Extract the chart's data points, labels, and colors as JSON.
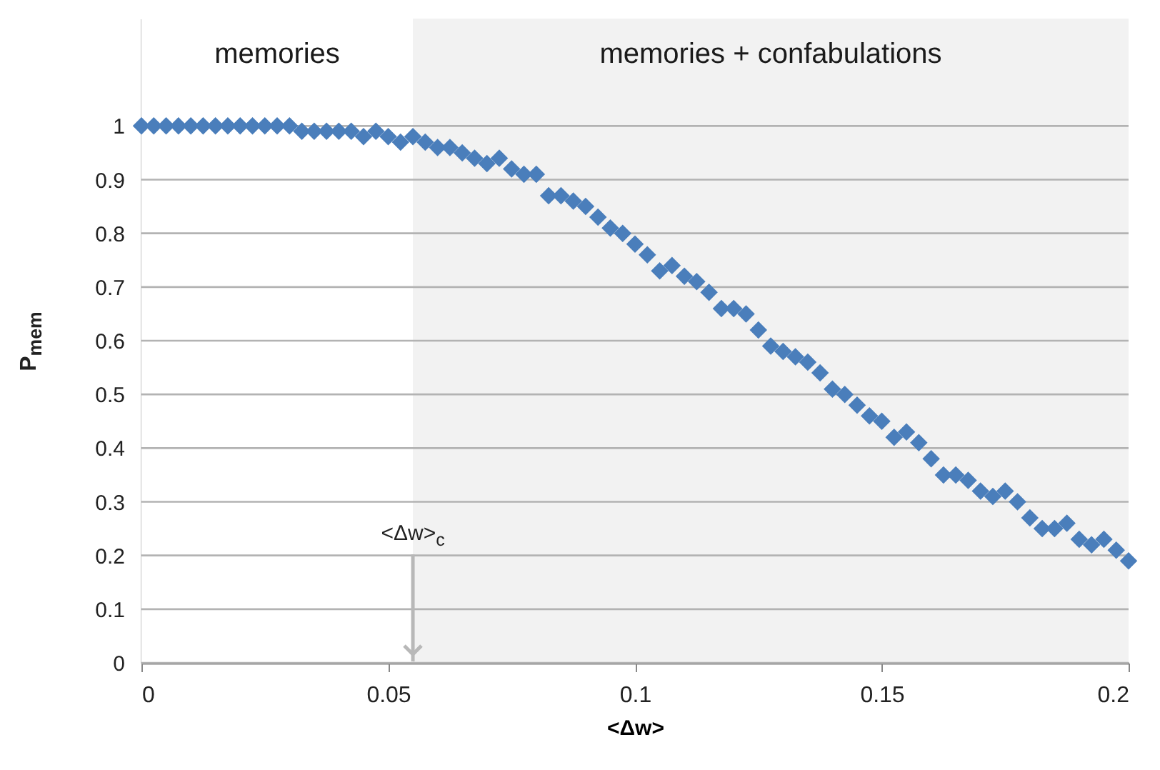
{
  "chart_data": {
    "type": "scatter",
    "xlabel": "<Δw>",
    "ylabel": "P$_{mem}$",
    "x": [
      0,
      0.0025,
      0.005,
      0.0075,
      0.01,
      0.0125,
      0.015,
      0.0175,
      0.02,
      0.0225,
      0.025,
      0.0275,
      0.03,
      0.0325,
      0.035,
      0.0375,
      0.04,
      0.0425,
      0.045,
      0.0475,
      0.05,
      0.0525,
      0.055,
      0.0575,
      0.06,
      0.0625,
      0.065,
      0.0675,
      0.07,
      0.0725,
      0.075,
      0.0775,
      0.08,
      0.0825,
      0.085,
      0.0875,
      0.09,
      0.0925,
      0.095,
      0.0975,
      0.1,
      0.1025,
      0.105,
      0.1075,
      0.11,
      0.1125,
      0.115,
      0.1175,
      0.12,
      0.1225,
      0.125,
      0.1275,
      0.13,
      0.1325,
      0.135,
      0.1375,
      0.14,
      0.1425,
      0.145,
      0.1475,
      0.15,
      0.1525,
      0.155,
      0.1575,
      0.16,
      0.1625,
      0.165,
      0.1675,
      0.17,
      0.1725,
      0.175,
      0.1775,
      0.18,
      0.1825,
      0.185,
      0.1875,
      0.19,
      0.1925,
      0.195,
      0.1975,
      0.2
    ],
    "series": [
      {
        "color": "#4a7ebb",
        "values": [
          1,
          1,
          1,
          1,
          1,
          1,
          1,
          1,
          1,
          1,
          1,
          1,
          1,
          0.99,
          0.99,
          0.99,
          0.99,
          0.99,
          0.98,
          0.99,
          0.98,
          0.97,
          0.98,
          0.97,
          0.96,
          0.96,
          0.95,
          0.94,
          0.93,
          0.94,
          0.92,
          0.91,
          0.91,
          0.87,
          0.87,
          0.86,
          0.85,
          0.83,
          0.81,
          0.8,
          0.78,
          0.76,
          0.73,
          0.74,
          0.72,
          0.71,
          0.69,
          0.66,
          0.66,
          0.65,
          0.62,
          0.59,
          0.58,
          0.57,
          0.56,
          0.54,
          0.51,
          0.5,
          0.48,
          0.46,
          0.45,
          0.42,
          0.43,
          0.41,
          0.38,
          0.35,
          0.35,
          0.34,
          0.32,
          0.31,
          0.32,
          0.3,
          0.27,
          0.25,
          0.25,
          0.26,
          0.23,
          0.22,
          0.23,
          0.21,
          0.19
        ]
      }
    ],
    "xlim": [
      0,
      0.2
    ],
    "xticks": [
      0,
      0.05,
      0.1,
      0.15,
      0.2
    ],
    "ylim": [
      0,
      1.2
    ],
    "yticks": [
      0,
      0.1,
      0.2,
      0.3,
      0.4,
      0.5,
      0.6,
      0.7,
      0.8,
      0.9,
      1
    ],
    "grid": "y",
    "marker": "diamond",
    "bands": [
      {
        "axis": "x",
        "from": 0,
        "to": 0.055,
        "label": "memories",
        "color": "#ffffff"
      },
      {
        "axis": "x",
        "from": 0.055,
        "to": 0.2,
        "label": "memories + confabulations",
        "color": "#f2f2f2"
      }
    ],
    "ref_lines": [
      {
        "axis": "x",
        "value": 0.055,
        "label": "<Δw>$_{c}$",
        "color": "#b8b8b8"
      }
    ]
  }
}
